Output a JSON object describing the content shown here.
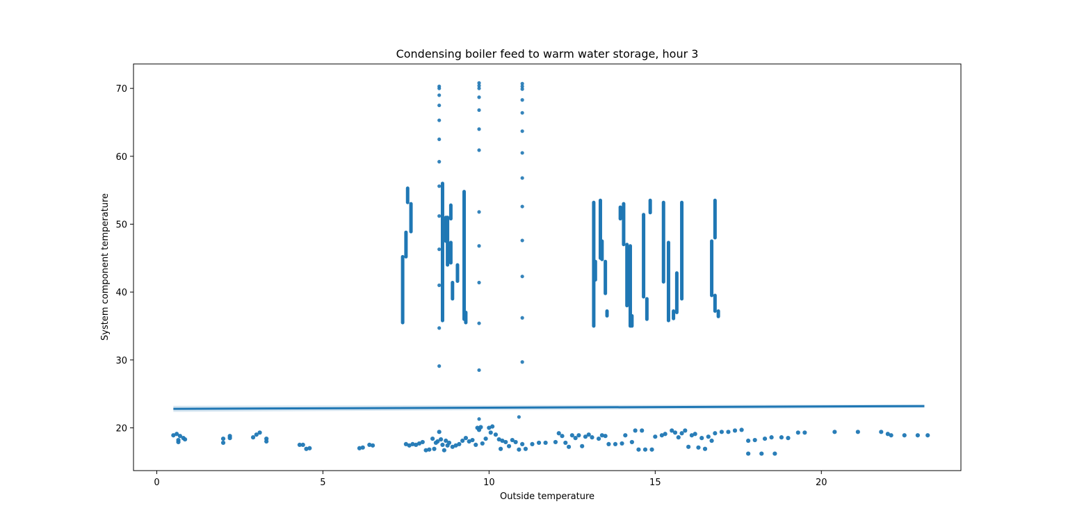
{
  "chart_data": {
    "type": "scatter",
    "title": "Condensing boiler feed to warm water storage, hour 3",
    "xlabel": "Outside temperature",
    "ylabel": "System component temperature",
    "xlim": [
      -0.7,
      24.2
    ],
    "ylim": [
      13.7,
      73.6
    ],
    "xticks": [
      0,
      5,
      10,
      15,
      20
    ],
    "yticks": [
      20,
      30,
      40,
      50,
      60,
      70
    ],
    "grid": false,
    "point_color": "#1f77b4",
    "vertical_runs": [
      [
        7.4,
        35.5,
        45.2
      ],
      [
        7.5,
        45.2,
        48.8
      ],
      [
        7.55,
        53.2,
        55.3
      ],
      [
        7.65,
        48.9,
        53.0
      ],
      [
        8.6,
        35.8,
        56.0
      ],
      [
        8.7,
        47.5,
        51.0
      ],
      [
        8.75,
        44.0,
        51.0
      ],
      [
        8.85,
        44.3,
        47.3
      ],
      [
        8.9,
        39.0,
        41.4
      ],
      [
        8.85,
        50.8,
        52.8
      ],
      [
        9.05,
        41.6,
        44.0
      ],
      [
        9.25,
        36.0,
        54.8
      ],
      [
        9.3,
        35.5,
        37.0
      ],
      [
        13.15,
        35.0,
        53.2
      ],
      [
        13.2,
        41.8,
        44.5
      ],
      [
        13.35,
        45.0,
        53.5
      ],
      [
        13.4,
        44.8,
        47.5
      ],
      [
        13.5,
        39.8,
        44.5
      ],
      [
        13.55,
        36.5,
        37.2
      ],
      [
        13.95,
        50.8,
        52.5
      ],
      [
        14.05,
        47.0,
        53.0
      ],
      [
        14.15,
        38.0,
        47.0
      ],
      [
        14.25,
        35.0,
        46.8
      ],
      [
        14.3,
        35.0,
        36.5
      ],
      [
        14.65,
        39.3,
        51.4
      ],
      [
        14.75,
        36.0,
        39.0
      ],
      [
        14.85,
        51.7,
        53.5
      ],
      [
        15.25,
        41.5,
        53.2
      ],
      [
        15.4,
        35.8,
        47.3
      ],
      [
        15.55,
        36.1,
        37.2
      ],
      [
        15.65,
        37.0,
        42.8
      ],
      [
        15.8,
        39.0,
        53.2
      ],
      [
        16.7,
        39.5,
        47.5
      ],
      [
        16.8,
        48.0,
        53.5
      ],
      [
        16.8,
        37.2,
        39.5
      ],
      [
        16.9,
        36.4,
        37.2
      ]
    ],
    "scatter_points": [
      [
        8.5,
        70.3
      ],
      [
        8.5,
        70.0
      ],
      [
        8.5,
        69.0
      ],
      [
        8.5,
        67.5
      ],
      [
        8.5,
        65.3
      ],
      [
        8.5,
        62.5
      ],
      [
        8.5,
        59.2
      ],
      [
        8.5,
        55.6
      ],
      [
        8.5,
        51.2
      ],
      [
        8.5,
        46.3
      ],
      [
        8.5,
        41.0
      ],
      [
        8.5,
        34.7
      ],
      [
        8.5,
        29.1
      ],
      [
        9.7,
        70.8
      ],
      [
        9.7,
        70.4
      ],
      [
        9.7,
        70.0
      ],
      [
        9.7,
        68.7
      ],
      [
        9.7,
        66.8
      ],
      [
        9.7,
        64.0
      ],
      [
        9.7,
        60.9
      ],
      [
        9.7,
        51.8
      ],
      [
        9.7,
        46.8
      ],
      [
        9.7,
        41.4
      ],
      [
        9.7,
        35.4
      ],
      [
        9.7,
        28.5
      ],
      [
        11.0,
        70.7
      ],
      [
        11.0,
        70.3
      ],
      [
        11.0,
        69.9
      ],
      [
        11.0,
        68.3
      ],
      [
        11.0,
        66.4
      ],
      [
        11.0,
        63.7
      ],
      [
        11.0,
        60.5
      ],
      [
        11.0,
        56.8
      ],
      [
        11.0,
        52.6
      ],
      [
        11.0,
        47.6
      ],
      [
        11.0,
        42.3
      ],
      [
        11.0,
        36.2
      ],
      [
        11.0,
        29.7
      ],
      [
        10.9,
        21.6
      ],
      [
        9.7,
        21.3
      ]
    ],
    "low_band": [
      [
        0.5,
        18.9
      ],
      [
        0.6,
        19.1
      ],
      [
        0.65,
        18.2
      ],
      [
        0.7,
        18.8
      ],
      [
        0.8,
        18.5
      ],
      [
        0.85,
        18.3
      ],
      [
        0.65,
        17.9
      ],
      [
        2.0,
        18.4
      ],
      [
        2.0,
        17.8
      ],
      [
        2.2,
        18.8
      ],
      [
        2.2,
        18.5
      ],
      [
        2.9,
        18.6
      ],
      [
        3.0,
        19.0
      ],
      [
        3.1,
        19.3
      ],
      [
        3.3,
        18.4
      ],
      [
        3.3,
        18.0
      ],
      [
        4.3,
        17.5
      ],
      [
        4.4,
        17.5
      ],
      [
        4.5,
        16.9
      ],
      [
        4.6,
        17.0
      ],
      [
        6.1,
        17.0
      ],
      [
        6.2,
        17.1
      ],
      [
        6.4,
        17.5
      ],
      [
        6.5,
        17.4
      ],
      [
        7.5,
        17.6
      ],
      [
        7.6,
        17.4
      ],
      [
        7.7,
        17.6
      ],
      [
        7.8,
        17.5
      ],
      [
        7.9,
        17.7
      ],
      [
        8.0,
        17.9
      ],
      [
        8.1,
        16.7
      ],
      [
        8.2,
        16.8
      ],
      [
        8.3,
        18.4
      ],
      [
        8.35,
        16.9
      ],
      [
        8.4,
        17.8
      ],
      [
        8.45,
        18.0
      ],
      [
        8.5,
        19.4
      ],
      [
        8.55,
        18.3
      ],
      [
        8.6,
        17.5
      ],
      [
        8.65,
        16.7
      ],
      [
        8.7,
        18.1
      ],
      [
        8.75,
        17.4
      ],
      [
        8.8,
        17.8
      ],
      [
        8.9,
        17.2
      ],
      [
        9.0,
        17.4
      ],
      [
        9.1,
        17.6
      ],
      [
        9.2,
        18.1
      ],
      [
        9.3,
        18.5
      ],
      [
        9.4,
        18.0
      ],
      [
        9.5,
        18.2
      ],
      [
        9.6,
        17.5
      ],
      [
        9.65,
        20.0
      ],
      [
        9.7,
        19.7
      ],
      [
        9.75,
        20.1
      ],
      [
        9.8,
        17.7
      ],
      [
        9.9,
        18.4
      ],
      [
        10.0,
        20.0
      ],
      [
        10.05,
        19.3
      ],
      [
        10.1,
        20.2
      ],
      [
        10.2,
        19.0
      ],
      [
        10.3,
        18.3
      ],
      [
        10.35,
        16.9
      ],
      [
        10.4,
        18.1
      ],
      [
        10.5,
        17.9
      ],
      [
        10.6,
        17.3
      ],
      [
        10.7,
        18.2
      ],
      [
        10.8,
        17.9
      ],
      [
        10.9,
        16.8
      ],
      [
        11.0,
        17.6
      ],
      [
        11.1,
        16.9
      ],
      [
        11.3,
        17.6
      ],
      [
        11.5,
        17.8
      ],
      [
        11.7,
        17.8
      ],
      [
        12.0,
        17.9
      ],
      [
        12.1,
        19.2
      ],
      [
        12.2,
        18.8
      ],
      [
        12.3,
        17.8
      ],
      [
        12.4,
        17.2
      ],
      [
        12.5,
        18.9
      ],
      [
        12.6,
        18.5
      ],
      [
        12.7,
        18.9
      ],
      [
        12.8,
        17.3
      ],
      [
        12.9,
        18.7
      ],
      [
        13.0,
        19.0
      ],
      [
        13.1,
        18.6
      ],
      [
        13.3,
        18.4
      ],
      [
        13.4,
        18.9
      ],
      [
        13.5,
        18.8
      ],
      [
        13.6,
        17.6
      ],
      [
        13.8,
        17.6
      ],
      [
        14.0,
        17.7
      ],
      [
        14.1,
        18.9
      ],
      [
        14.3,
        17.9
      ],
      [
        14.4,
        19.6
      ],
      [
        14.5,
        16.8
      ],
      [
        14.6,
        19.6
      ],
      [
        14.7,
        16.8
      ],
      [
        14.9,
        16.8
      ],
      [
        15.0,
        18.7
      ],
      [
        15.2,
        18.9
      ],
      [
        15.3,
        19.1
      ],
      [
        15.5,
        19.6
      ],
      [
        15.6,
        19.3
      ],
      [
        15.7,
        18.6
      ],
      [
        15.8,
        19.2
      ],
      [
        15.9,
        19.6
      ],
      [
        16.0,
        17.2
      ],
      [
        16.1,
        18.9
      ],
      [
        16.2,
        19.1
      ],
      [
        16.3,
        17.1
      ],
      [
        16.4,
        18.5
      ],
      [
        16.5,
        16.9
      ],
      [
        16.6,
        18.7
      ],
      [
        16.7,
        18.1
      ],
      [
        16.8,
        19.2
      ],
      [
        17.0,
        19.4
      ],
      [
        17.2,
        19.4
      ],
      [
        17.4,
        19.6
      ],
      [
        17.6,
        19.7
      ],
      [
        17.8,
        18.1
      ],
      [
        17.8,
        16.2
      ],
      [
        18.0,
        18.2
      ],
      [
        18.2,
        16.2
      ],
      [
        18.3,
        18.4
      ],
      [
        18.5,
        18.6
      ],
      [
        18.6,
        16.2
      ],
      [
        18.8,
        18.6
      ],
      [
        19.0,
        18.5
      ],
      [
        19.3,
        19.3
      ],
      [
        19.5,
        19.3
      ],
      [
        20.4,
        19.4
      ],
      [
        21.1,
        19.4
      ],
      [
        21.8,
        19.4
      ],
      [
        22.0,
        19.1
      ],
      [
        22.1,
        18.9
      ],
      [
        22.5,
        18.9
      ],
      [
        22.9,
        18.9
      ],
      [
        23.2,
        18.9
      ]
    ],
    "regression_line": {
      "x": [
        0.5,
        23.1
      ],
      "y": [
        22.8,
        23.2
      ]
    }
  }
}
